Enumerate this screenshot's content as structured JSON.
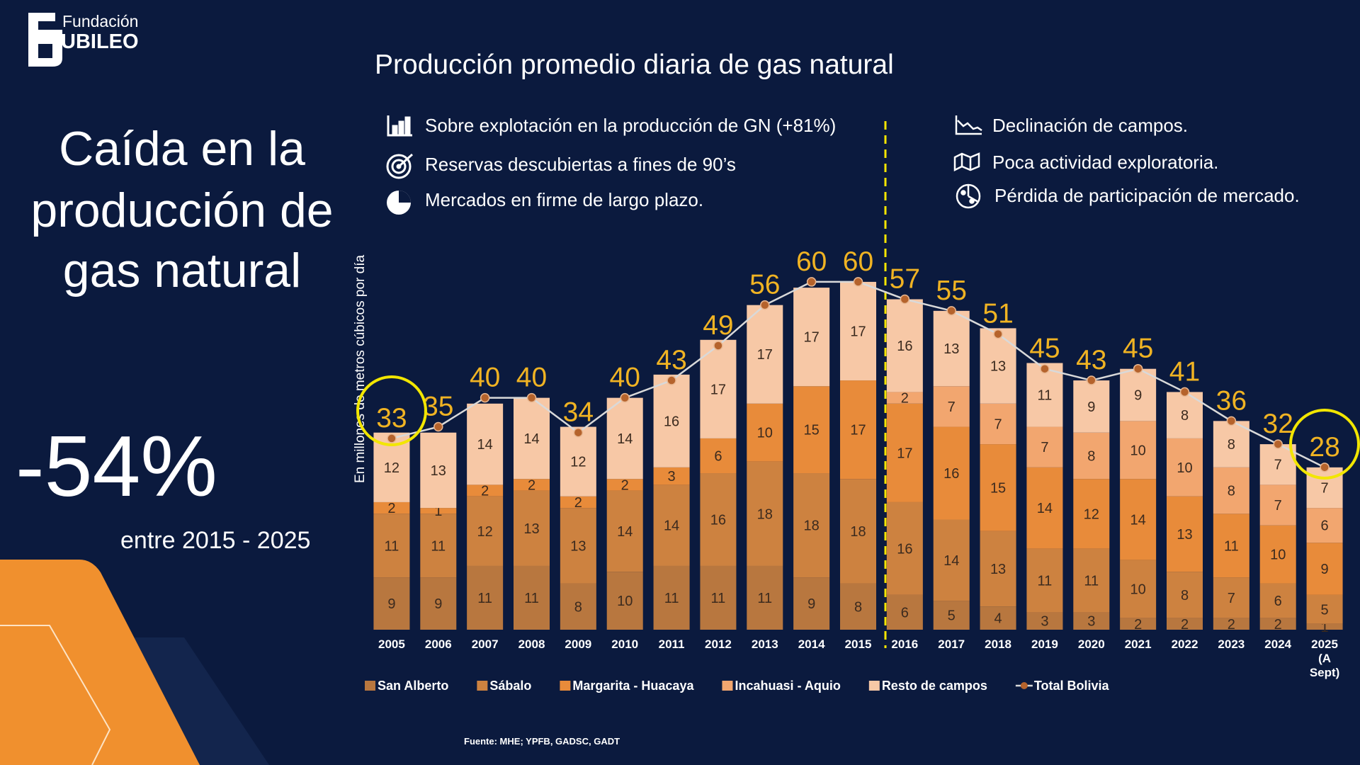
{
  "logo": {
    "line1": "Fundación",
    "line2": "UBILEO"
  },
  "headline": {
    "title_lines": [
      "Caída en la",
      "producción de",
      "gas natural"
    ],
    "figure": "-54%",
    "figure_caption": "entre 2015 - 2025"
  },
  "notes": {
    "left": [
      "Sobre explotación en la producción de GN (+81%)",
      "Reservas descubiertas a fines de 90’s",
      "Mercados en firme de largo plazo."
    ],
    "right": [
      "Declinación de campos.",
      "Poca actividad exploratoria.",
      "Pérdida de participación de mercado."
    ]
  },
  "source": "Fuente: MHE; YPFB, GADSC, GADT",
  "chart_data": {
    "type": "bar",
    "stacked": true,
    "title": "Producción promedio diaria de gas natural",
    "y_label": "En millones de metros cúbicos por día",
    "categories": [
      "2005",
      "2006",
      "2007",
      "2008",
      "2009",
      "2010",
      "2011",
      "2012",
      "2013",
      "2014",
      "2015",
      "2016",
      "2017",
      "2018",
      "2019",
      "2020",
      "2021",
      "2022",
      "2023",
      "2024",
      "2025 (A Sept)"
    ],
    "ylim": [
      0,
      65
    ],
    "legend": "bottom",
    "series": [
      {
        "name": "San Alberto",
        "color": "#b8773f",
        "values": [
          9,
          9,
          11,
          11,
          8,
          10,
          11,
          11,
          11,
          9,
          8,
          6,
          5,
          4,
          3,
          3,
          2,
          2,
          2,
          2,
          1
        ]
      },
      {
        "name": "Sábalo",
        "color": "#cd8240",
        "values": [
          11,
          11,
          12,
          13,
          13,
          14,
          14,
          16,
          18,
          18,
          18,
          16,
          14,
          13,
          11,
          11,
          10,
          8,
          7,
          6,
          5
        ]
      },
      {
        "name": "Margarita - Huacaya",
        "color": "#e88b3a",
        "values": [
          2,
          1,
          2,
          2,
          2,
          2,
          3,
          6,
          10,
          15,
          17,
          17,
          16,
          15,
          14,
          12,
          14,
          13,
          11,
          10,
          9
        ]
      },
      {
        "name": "Incahuasi - Aquio",
        "color": "#f2a66f",
        "values": [
          null,
          null,
          null,
          null,
          null,
          null,
          null,
          null,
          null,
          null,
          null,
          2,
          7,
          7,
          7,
          8,
          10,
          10,
          8,
          7,
          6
        ]
      },
      {
        "name": "Resto de campos",
        "color": "#f7c8a6",
        "values": [
          12,
          13,
          14,
          14,
          12,
          14,
          16,
          17,
          17,
          17,
          17,
          16,
          13,
          13,
          11,
          9,
          9,
          8,
          8,
          7,
          7
        ]
      },
      {
        "name": "Total Bolivia",
        "type": "line",
        "color": "#d9d9d9",
        "marker_color": "#b5632c",
        "label_color": "#f0b323",
        "values": [
          33,
          35,
          40,
          40,
          34,
          40,
          43,
          49,
          56,
          60,
          60,
          57,
          55,
          51,
          45,
          43,
          45,
          41,
          36,
          32,
          28
        ]
      }
    ]
  }
}
